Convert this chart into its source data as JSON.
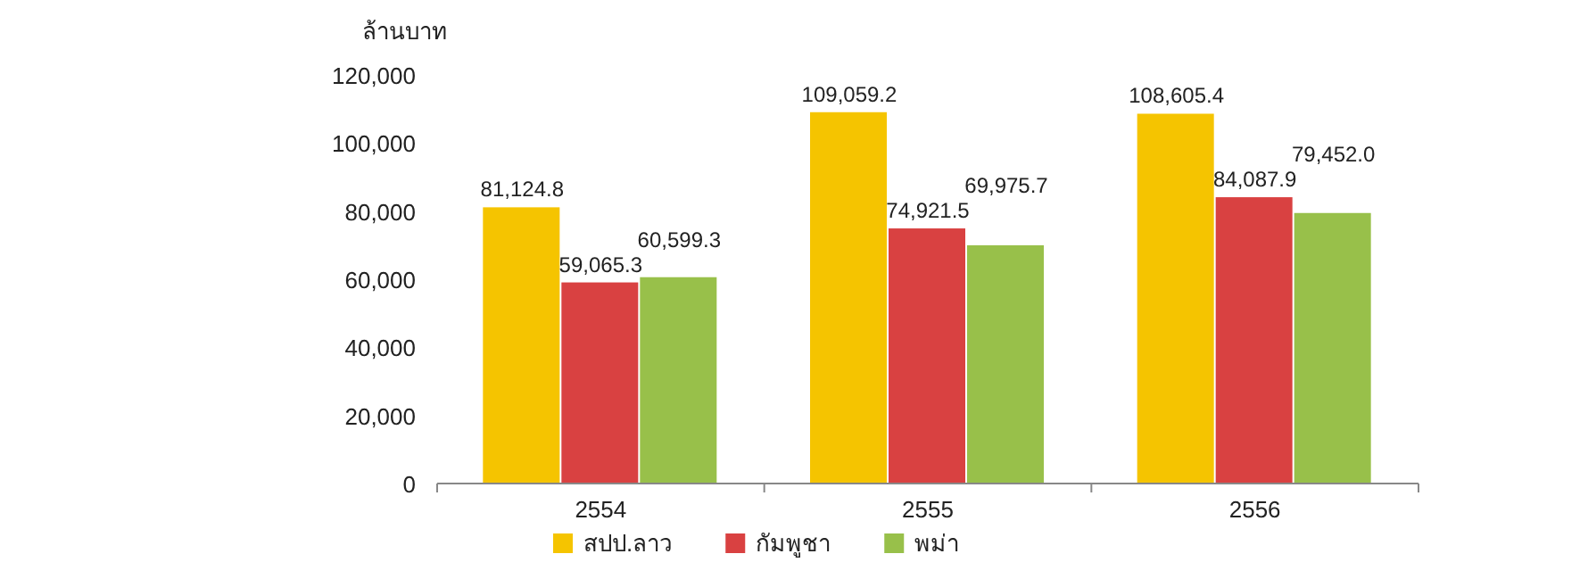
{
  "chart_data": {
    "type": "bar",
    "ylabel": "ล้านบาท",
    "categories": [
      "2554",
      "2555",
      "2556"
    ],
    "ylim": [
      0,
      120000
    ],
    "yticks": [
      {
        "value": 0,
        "label": "0"
      },
      {
        "value": 20000,
        "label": "20,000"
      },
      {
        "value": 40000,
        "label": "40,000"
      },
      {
        "value": 60000,
        "label": "60,000"
      },
      {
        "value": 80000,
        "label": "80,000"
      },
      {
        "value": 100000,
        "label": "100,000"
      },
      {
        "value": 120000,
        "label": "120,000"
      }
    ],
    "legend": "bottom",
    "series": [
      {
        "name": "สปป.ลาว",
        "color": "#f5c400",
        "values": [
          81124.8,
          109059.2,
          108605.4
        ],
        "value_labels": [
          "81,124.8",
          "109,059.2",
          "108,605.4"
        ]
      },
      {
        "name": "กัมพูชา",
        "color": "#d94141",
        "values": [
          59065.3,
          74921.5,
          84087.9
        ],
        "value_labels": [
          "59,065.3",
          "74,921.5",
          "84,087.9"
        ]
      },
      {
        "name": "พม่า",
        "color": "#98c04a",
        "values": [
          60599.3,
          69975.7,
          79452.0
        ],
        "value_labels": [
          "60,599.3",
          "69,975.7",
          "79,452.0"
        ]
      }
    ]
  }
}
